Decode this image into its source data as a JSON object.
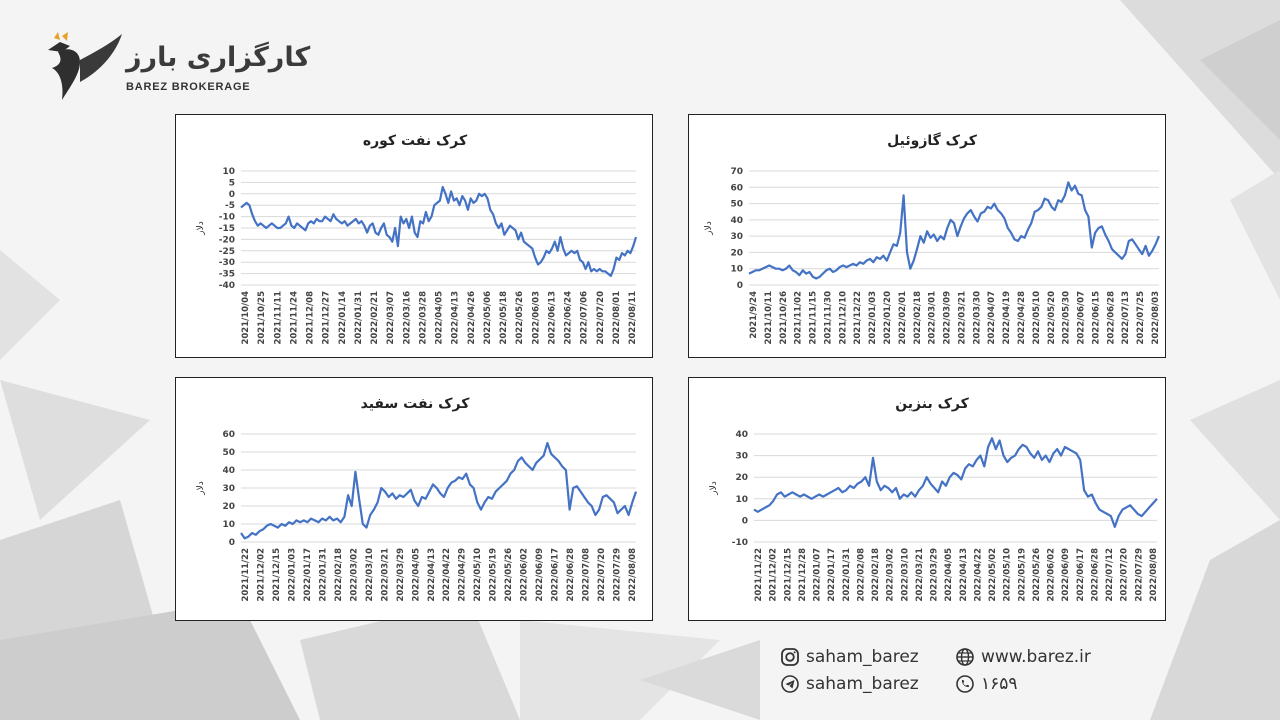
{
  "brand": {
    "name_fa": "کارگزاری بارز",
    "name_en": "BAREZ BROKERAGE"
  },
  "colors": {
    "line": "#4472c4",
    "accent": "#e7a12a"
  },
  "chart_data": [
    {
      "type": "line",
      "title": "کرک نفت کوره",
      "ylabel": "دلار",
      "ylim": [
        -40,
        10
      ],
      "yticks": [
        10,
        5,
        0,
        -5,
        -10,
        -15,
        -20,
        -25,
        -30,
        -35,
        -40
      ],
      "x_ticks": [
        "2021/10/04",
        "2021/10/25",
        "2021/11/11",
        "2021/11/24",
        "2021/12/08",
        "2021/12/27",
        "2022/01/14",
        "2022/01/31",
        "2022/02/21",
        "2022/03/07",
        "2022/03/16",
        "2022/03/28",
        "2022/04/05",
        "2022/04/13",
        "2022/04/26",
        "2022/05/06",
        "2022/05/18",
        "2022/05/26",
        "2022/06/03",
        "2022/06/13",
        "2022/06/24",
        "2022/07/06",
        "2022/07/20",
        "2022/08/01",
        "2022/08/11"
      ],
      "values": [
        -6,
        -5,
        -4,
        -5,
        -9,
        -12,
        -14,
        -13,
        -14,
        -15,
        -14,
        -13,
        -14,
        -15,
        -15,
        -14,
        -13,
        -10,
        -14,
        -15,
        -13,
        -14,
        -15,
        -16,
        -13,
        -12,
        -13,
        -11,
        -12,
        -12,
        -10,
        -11,
        -12,
        -9,
        -11,
        -12,
        -13,
        -12,
        -14,
        -13,
        -12,
        -11,
        -13,
        -12,
        -14,
        -17,
        -14,
        -13,
        -17,
        -18,
        -15,
        -13,
        -18,
        -19,
        -21,
        -15,
        -23,
        -10,
        -13,
        -11,
        -15,
        -10,
        -17,
        -19,
        -12,
        -13,
        -8,
        -12,
        -10,
        -5,
        -4,
        -3,
        3,
        0,
        -4,
        1,
        -3,
        -2,
        -5,
        -1,
        -3,
        -7,
        -2,
        -4,
        -3,
        0,
        -1,
        0,
        -2,
        -7,
        -9,
        -13,
        -15,
        -13,
        -18,
        -16,
        -14,
        -15,
        -16,
        -20,
        -17,
        -21,
        -22,
        -23,
        -24,
        -28,
        -31,
        -30,
        -28,
        -25,
        -26,
        -24,
        -21,
        -25,
        -19,
        -24,
        -27,
        -26,
        -25,
        -26,
        -25,
        -29,
        -30,
        -33,
        -30,
        -34,
        -33,
        -34,
        -33,
        -34,
        -34,
        -35,
        -36,
        -33,
        -28,
        -29,
        -26,
        -27,
        -25,
        -26,
        -23,
        -19
      ]
    },
    {
      "type": "line",
      "title": "کرک گازوئیل",
      "ylabel": "دلار",
      "ylim": [
        0,
        70
      ],
      "yticks": [
        70,
        60,
        50,
        40,
        30,
        20,
        10,
        0
      ],
      "x_ticks": [
        "2021/9/24",
        "2021/10/11",
        "2021/10/26",
        "2021/11/02",
        "2021/11/15",
        "2021/11/30",
        "2021/12/10",
        "2021/12/22",
        "2022/01/03",
        "2022/01/20",
        "2022/02/01",
        "2022/02/18",
        "2022/03/01",
        "2022/03/09",
        "2022/03/21",
        "2022/03/30",
        "2022/04/07",
        "2022/04/19",
        "2022/04/28",
        "2022/05/10",
        "2022/05/20",
        "2022/05/30",
        "2022/06/07",
        "2022/06/15",
        "2022/06/28",
        "2022/07/13",
        "2022/07/25",
        "2022/08/03"
      ],
      "values": [
        7,
        8,
        9,
        9,
        10,
        11,
        12,
        11,
        10,
        10,
        9,
        10,
        12,
        9,
        8,
        6,
        9,
        7,
        8,
        5,
        4,
        5,
        7,
        9,
        10,
        8,
        9,
        11,
        12,
        11,
        12,
        13,
        12,
        14,
        13,
        15,
        16,
        14,
        17,
        16,
        18,
        15,
        20,
        25,
        24,
        32,
        55,
        20,
        10,
        15,
        22,
        30,
        26,
        33,
        29,
        31,
        27,
        30,
        28,
        35,
        40,
        38,
        30,
        36,
        41,
        44,
        46,
        42,
        39,
        44,
        45,
        48,
        47,
        50,
        46,
        44,
        41,
        35,
        32,
        28,
        27,
        30,
        29,
        34,
        38,
        45,
        46,
        48,
        53,
        52,
        48,
        46,
        52,
        51,
        55,
        63,
        58,
        61,
        56,
        55,
        46,
        42,
        23,
        32,
        35,
        36,
        31,
        27,
        22,
        20,
        18,
        16,
        19,
        27,
        28,
        25,
        22,
        19,
        24,
        18,
        21,
        25,
        30
      ]
    },
    {
      "type": "line",
      "title": "کرک نفت سفید",
      "ylabel": "دلار",
      "ylim": [
        0,
        60
      ],
      "yticks": [
        60,
        50,
        40,
        30,
        20,
        10,
        0
      ],
      "x_ticks": [
        "2021/11/22",
        "2021/12/02",
        "2021/12/15",
        "2022/01/03",
        "2022/01/17",
        "2022/01/31",
        "2022/02/18",
        "2022/03/02",
        "2022/03/10",
        "2022/03/21",
        "2022/03/29",
        "2022/04/05",
        "2022/04/13",
        "2022/04/22",
        "2022/04/29",
        "2022/05/10",
        "2022/05/19",
        "2022/05/26",
        "2022/06/02",
        "2022/06/09",
        "2022/06/17",
        "2022/06/28",
        "2022/07/08",
        "2022/07/20",
        "2022/07/29",
        "2022/08/08"
      ],
      "values": [
        5,
        2,
        3,
        5,
        4,
        6,
        7,
        9,
        10,
        9,
        8,
        10,
        9,
        11,
        10,
        12,
        11,
        12,
        11,
        13,
        12,
        11,
        13,
        12,
        14,
        12,
        13,
        11,
        14,
        26,
        20,
        39,
        24,
        10,
        8,
        15,
        18,
        22,
        30,
        28,
        25,
        27,
        24,
        26,
        25,
        27,
        29,
        23,
        20,
        25,
        24,
        28,
        32,
        30,
        27,
        25,
        30,
        33,
        34,
        36,
        35,
        38,
        32,
        30,
        22,
        18,
        22,
        25,
        24,
        28,
        30,
        32,
        34,
        38,
        40,
        45,
        47,
        44,
        42,
        40,
        44,
        46,
        48,
        55,
        49,
        47,
        45,
        42,
        40,
        18,
        30,
        31,
        28,
        25,
        22,
        20,
        15,
        18,
        25,
        26,
        24,
        22,
        16,
        18,
        20,
        15,
        22,
        28
      ]
    },
    {
      "type": "line",
      "title": "کرک بنزین",
      "ylabel": "دلار",
      "ylim": [
        -10,
        40
      ],
      "yticks": [
        40,
        30,
        20,
        10,
        0,
        -10
      ],
      "x_ticks": [
        "2021/11/22",
        "2021/12/02",
        "2021/12/15",
        "2021/12/28",
        "2022/01/07",
        "2022/01/17",
        "2022/01/31",
        "2022/02/08",
        "2022/02/18",
        "2022/03/02",
        "2022/03/10",
        "2022/03/21",
        "2022/03/29",
        "2022/04/05",
        "2022/04/13",
        "2022/04/22",
        "2022/05/02",
        "2022/05/10",
        "2022/05/19",
        "2022/05/26",
        "2022/06/02",
        "2022/06/09",
        "2022/06/17",
        "2022/06/28",
        "2022/07/12",
        "2022/07/20",
        "2022/07/29",
        "2022/08/08"
      ],
      "values": [
        5,
        4,
        5,
        6,
        7,
        9,
        12,
        13,
        11,
        12,
        13,
        12,
        11,
        12,
        11,
        10,
        11,
        12,
        11,
        12,
        13,
        14,
        15,
        13,
        14,
        16,
        15,
        17,
        18,
        20,
        16,
        29,
        18,
        14,
        16,
        15,
        13,
        15,
        10,
        12,
        11,
        13,
        11,
        14,
        16,
        20,
        17,
        15,
        13,
        18,
        16,
        20,
        22,
        21,
        19,
        24,
        26,
        25,
        28,
        30,
        25,
        34,
        38,
        33,
        37,
        30,
        27,
        29,
        30,
        33,
        35,
        34,
        31,
        29,
        32,
        28,
        30,
        27,
        31,
        33,
        30,
        34,
        33,
        32,
        31,
        28,
        14,
        11,
        12,
        8,
        5,
        4,
        3,
        2,
        -3,
        2,
        5,
        6,
        7,
        5,
        3,
        2,
        4,
        6,
        8,
        10
      ]
    }
  ],
  "contacts": {
    "instagram": "saham_barez",
    "website": "www.barez.ir",
    "telegram": "saham_barez",
    "phone": "۱۶۵۹"
  }
}
